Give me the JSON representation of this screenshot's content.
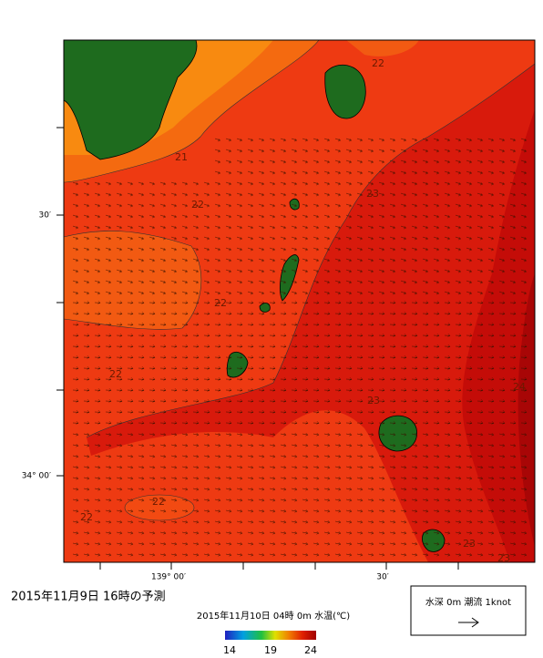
{
  "title": "2015年11月9日 16時の予測",
  "subtitle": "2015年11月10日 04時 0m 水温(℃)",
  "axes": {
    "left": [
      "30′",
      "34° 00′"
    ],
    "bottom": [
      "139° 00′",
      "30′"
    ]
  },
  "contour_labels": [
    "21",
    "22",
    "22",
    "23",
    "22",
    "22",
    "23",
    "24",
    "22",
    "23",
    "22",
    "23"
  ],
  "colorbar": {
    "ticks": [
      "14",
      "19",
      "24"
    ]
  },
  "legend": {
    "label": "水深 0m 潮流 1knot"
  }
}
